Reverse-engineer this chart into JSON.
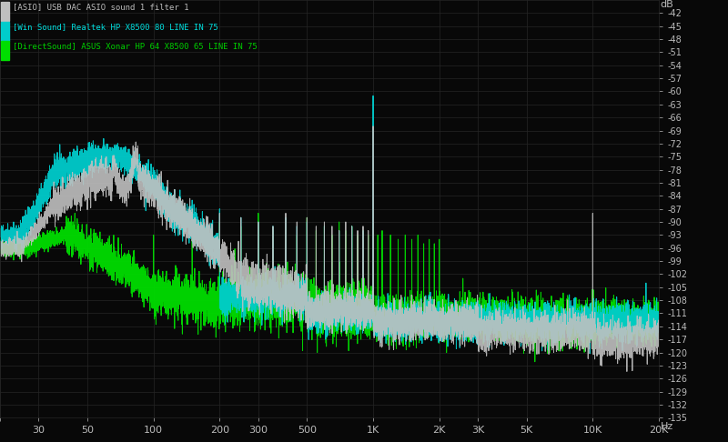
{
  "title_line1": "[ASIO] USB DAC ASIO sound 1 filter 1",
  "title_line2": "[Win Sound] Realtek HP X8500 80 LINE IN 75",
  "title_line3": "[DirectSound] ASUS Xonar HP 64 X8500 65 LINE IN 75",
  "bg_color": "#080808",
  "grid_color": "#252525",
  "text_color_white": "#bbbbbb",
  "text_color_cyan": "#00dddd",
  "text_color_green": "#00cc00",
  "line_color_white": "#c0c0c0",
  "line_color_cyan": "#00cccc",
  "line_color_green": "#00dd00",
  "freq_ticks": [
    20,
    30,
    50,
    100,
    200,
    300,
    500,
    1000,
    2000,
    3000,
    5000,
    10000,
    20000
  ],
  "freq_tick_labels": [
    "",
    "30",
    "50",
    "100",
    "200",
    "300",
    "500",
    "1K",
    "2K",
    "3K",
    "5K",
    "10K",
    "20K"
  ],
  "db_min": -135,
  "db_max": -39,
  "db_ticks": [
    -42,
    -45,
    -48,
    -51,
    -54,
    -57,
    -60,
    -63,
    -66,
    -69,
    -72,
    -75,
    -78,
    -81,
    -84,
    -87,
    -90,
    -93,
    -96,
    -99,
    -102,
    -105,
    -108,
    -111,
    -114,
    -117,
    -120,
    -123,
    -126,
    -129,
    -132,
    -135
  ],
  "ylabel": "dB",
  "xlabel": "Hz"
}
